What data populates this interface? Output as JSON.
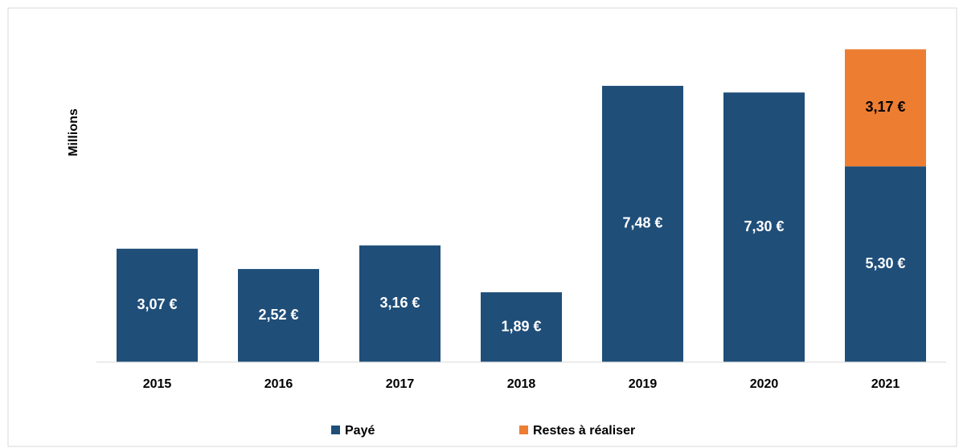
{
  "chart_data": {
    "type": "stacked_bar",
    "y_label": "Millions",
    "categories": [
      "2015",
      "2016",
      "2017",
      "2018",
      "2019",
      "2020",
      "2021"
    ],
    "series": [
      {
        "name": "Payé",
        "color": "#1f4e79",
        "values": [
          3.07,
          2.52,
          3.16,
          1.89,
          7.48,
          7.3,
          5.3
        ],
        "value_labels": [
          "3,07 €",
          "2,52 €",
          "3,16 €",
          "1,89 €",
          "7,48 €",
          "7,30 €",
          "5,30 €"
        ]
      },
      {
        "name": "Restes à réaliser",
        "color": "#ed7d31",
        "values": [
          null,
          null,
          null,
          null,
          null,
          null,
          3.17
        ],
        "value_labels": [
          null,
          null,
          null,
          null,
          null,
          null,
          "3,17 €"
        ]
      }
    ],
    "ylim": [
      0,
      9
    ],
    "legend": "bottom"
  }
}
